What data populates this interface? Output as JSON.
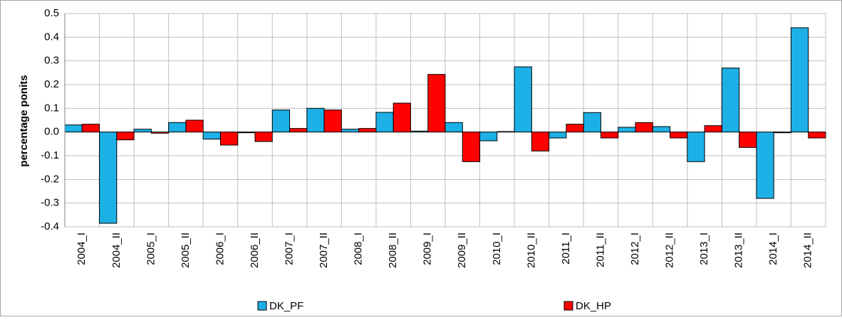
{
  "chart_data": {
    "type": "bar",
    "y_label": "percentage ponits",
    "categories": [
      "2004_I",
      "2004_II",
      "2005_I",
      "2005_II",
      "2006_I",
      "2006_II",
      "2007_I",
      "2007_II",
      "2008_I",
      "2008_II",
      "2009_I",
      "2009_II",
      "2010_I",
      "2010_II",
      "2011_I",
      "2011_II",
      "2012_I",
      "2012_II",
      "2013_I",
      "2013_II",
      "2014_I",
      "2014_II"
    ],
    "series": [
      {
        "name": "DK_PF",
        "color": "#1cb0e6",
        "values": [
          0.03,
          -0.385,
          0.012,
          0.04,
          -0.03,
          -0.003,
          0.093,
          0.1,
          0.012,
          0.083,
          0.004,
          0.04,
          -0.037,
          0.275,
          -0.025,
          0.082,
          0.02,
          0.023,
          -0.125,
          0.27,
          -0.28,
          0.44
        ]
      },
      {
        "name": "DK_HP",
        "color": "#ff0000",
        "values": [
          0.033,
          -0.033,
          -0.005,
          0.05,
          -0.055,
          -0.04,
          0.015,
          0.093,
          0.015,
          0.122,
          0.243,
          -0.125,
          0.002,
          -0.08,
          0.033,
          -0.025,
          0.04,
          -0.025,
          0.027,
          -0.065,
          -0.003,
          -0.025
        ]
      }
    ],
    "ylim": [
      -0.4,
      0.5
    ],
    "yticks": [
      -0.4,
      -0.3,
      -0.2,
      -0.1,
      {
        "value": 0,
        "label": "0.0"
      },
      0.1,
      0.2,
      0.3,
      0.4,
      0.5
    ],
    "grid": true,
    "legend": "bottom"
  }
}
